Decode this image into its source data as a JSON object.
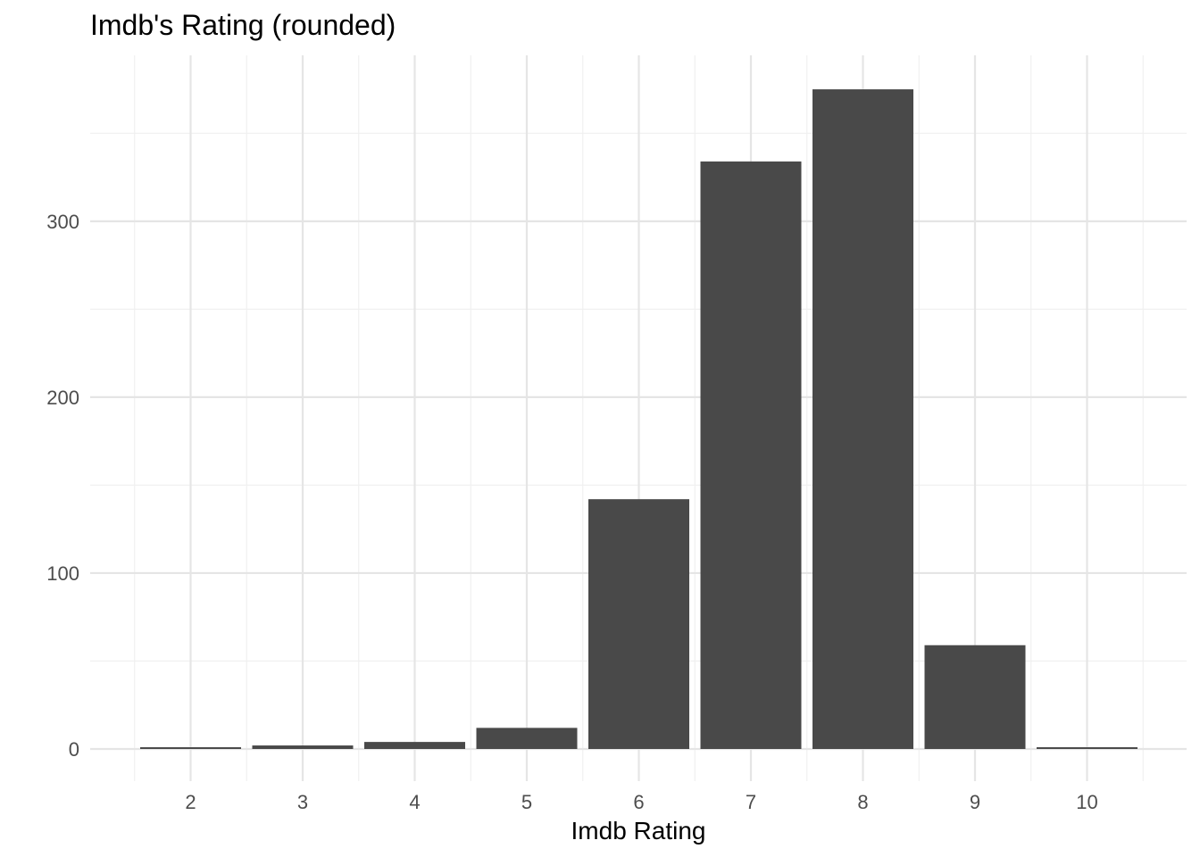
{
  "chart_data": {
    "type": "bar",
    "title": "Imdb's Rating (rounded)",
    "xlabel": "Imdb Rating",
    "ylabel": "",
    "categories": [
      "2",
      "3",
      "4",
      "5",
      "6",
      "7",
      "8",
      "9",
      "10"
    ],
    "values": [
      1,
      2,
      4,
      12,
      142,
      334,
      375,
      59,
      1
    ],
    "ylim": [
      -15,
      394
    ],
    "y_ticks": [
      "0",
      "100",
      "200",
      "300"
    ],
    "grid": true,
    "legend": "none",
    "colors": {
      "bar": "#494949",
      "grid_major": "#e5e5e5",
      "grid_minor": "#f0f0f0",
      "background": "#ffffff",
      "tick_label": "#4d4d4d"
    }
  }
}
